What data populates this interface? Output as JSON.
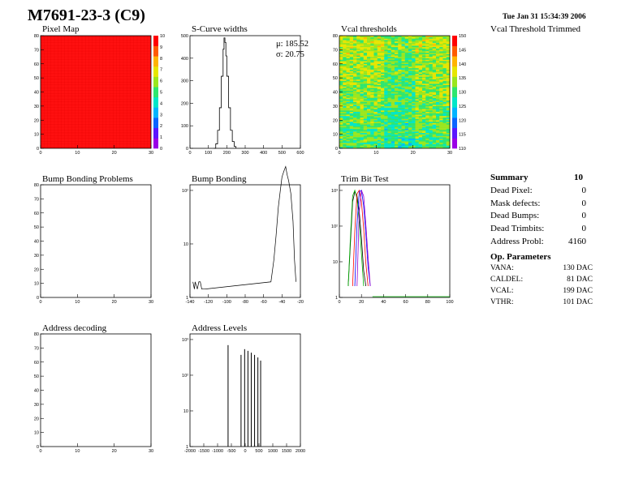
{
  "header": {
    "title": "M7691-23-3 (C9)",
    "date": "Tue Jan 31 15:34:39 2006"
  },
  "colors": {
    "pixel_map_fill": "#ff1010",
    "hist_line": "#000000",
    "palette": [
      "#9a00e6",
      "#5a16ff",
      "#0a64ff",
      "#00b4ff",
      "#00e6c8",
      "#2ee66e",
      "#9ae61e",
      "#e6e600",
      "#ffb400",
      "#ff5a00",
      "#ff0000"
    ]
  },
  "trimmed_label": "Vcal Threshold Trimmed",
  "summary": {
    "title": "Summary",
    "grade": "10",
    "rows": [
      {
        "label": "Dead Pixel:",
        "value": "0"
      },
      {
        "label": "Mask defects:",
        "value": "0"
      },
      {
        "label": "Dead Bumps:",
        "value": "0"
      },
      {
        "label": "Dead Trimbits:",
        "value": "0"
      },
      {
        "label": "Address Probl:",
        "value": "4160"
      }
    ]
  },
  "op_params": {
    "title": "Op. Parameters",
    "rows": [
      {
        "label": "VANA:",
        "value": "130 DAC"
      },
      {
        "label": "CALDEL:",
        "value": "81 DAC"
      },
      {
        "label": "VCAL:",
        "value": "199 DAC"
      },
      {
        "label": "VTHR:",
        "value": "101 DAC"
      }
    ]
  },
  "chart_data": [
    {
      "id": "pixel-map",
      "type": "heatmap",
      "title": "Pixel Map",
      "xlim": [
        0,
        32
      ],
      "ylim": [
        0,
        80
      ],
      "zlim": [
        0,
        10
      ],
      "xticks": [
        "0",
        "10",
        "20",
        "30"
      ],
      "yticks": [
        "0",
        "10",
        "20",
        "30",
        "40",
        "50",
        "60",
        "70",
        "80"
      ],
      "zticks": [
        "0",
        "1",
        "2",
        "3",
        "4",
        "5",
        "6",
        "7",
        "8",
        "9",
        "10"
      ],
      "uniform_value": 10
    },
    {
      "id": "s-curve-widths",
      "type": "line",
      "title": "S-Curve widths",
      "xlim": [
        0,
        600
      ],
      "ylim": [
        0,
        500
      ],
      "xticks": [
        "0",
        "100",
        "200",
        "300",
        "400",
        "500",
        "600"
      ],
      "yticks": [
        "0",
        "100",
        "200",
        "300",
        "400",
        "500"
      ],
      "stats": {
        "mean_label": "μ: 185.52",
        "sigma_label": "σ: 20.75"
      },
      "x": [
        130,
        140,
        150,
        160,
        170,
        180,
        185,
        190,
        195,
        200,
        210,
        220,
        230,
        240,
        250
      ],
      "y": [
        0,
        20,
        80,
        180,
        320,
        440,
        490,
        470,
        410,
        320,
        180,
        80,
        30,
        8,
        0
      ]
    },
    {
      "id": "vcal-thresholds",
      "type": "heatmap",
      "title": "Vcal thresholds",
      "xlim": [
        0,
        32
      ],
      "ylim": [
        0,
        80
      ],
      "zlim": [
        105,
        150
      ],
      "xticks": [
        "0",
        "10",
        "20",
        "30"
      ],
      "yticks": [
        "0",
        "10",
        "20",
        "30",
        "40",
        "50",
        "60",
        "70",
        "80"
      ],
      "zticks": [
        "110",
        "115",
        "120",
        "125",
        "130",
        "135",
        "140",
        "145",
        "150"
      ],
      "mean_value": 128
    },
    {
      "id": "bump-bonding-problems",
      "type": "heatmap",
      "title": "Bump Bonding Problems",
      "xlim": [
        0,
        32
      ],
      "ylim": [
        0,
        80
      ],
      "xticks": [
        "0",
        "10",
        "20",
        "30"
      ],
      "yticks": [
        "0",
        "10",
        "20",
        "30",
        "40",
        "50",
        "60",
        "70",
        "80"
      ]
    },
    {
      "id": "bump-bonding",
      "type": "line",
      "title": "Bump Bonding",
      "xlim": [
        -150,
        0
      ],
      "log_y": true,
      "xticks": [
        "-140",
        "-120",
        "-100",
        "-80",
        "-60",
        "-40",
        "-20"
      ],
      "yticks": [
        "1",
        "10",
        "10²"
      ],
      "x": [
        -146,
        -144,
        -143,
        -140,
        -138,
        -136,
        -134,
        -130,
        -40,
        -36,
        -33,
        -30,
        -27,
        -25,
        -22,
        -20,
        -18,
        -16,
        -13,
        -10,
        -8,
        -6
      ],
      "y": [
        1,
        0.7,
        1,
        0.7,
        1,
        1,
        0.7,
        0.7,
        1,
        3,
        10,
        40,
        100,
        180,
        250,
        300,
        200,
        150,
        80,
        20,
        3,
        1
      ]
    },
    {
      "id": "trim-bit-test",
      "type": "line",
      "title": "Trim Bit Test",
      "xlim": [
        0,
        100
      ],
      "log_y": true,
      "xticks": [
        "0",
        "20",
        "40",
        "60",
        "80",
        "100"
      ],
      "yticks": [
        "1",
        "10",
        "10²",
        "10³"
      ],
      "series": [
        {
          "color": "#000000",
          "x": [
            8,
            10,
            12,
            14,
            16,
            18,
            20,
            22,
            24
          ],
          "y": [
            1,
            20,
            400,
            800,
            600,
            200,
            30,
            3,
            1
          ]
        },
        {
          "color": "#00b000",
          "x": [
            8,
            10,
            12,
            14,
            16,
            18,
            20,
            22
          ],
          "y": [
            1,
            30,
            600,
            900,
            500,
            100,
            10,
            1
          ]
        },
        {
          "color": "#ff0000",
          "x": [
            12,
            14,
            16,
            18,
            20,
            22,
            24,
            26
          ],
          "y": [
            1,
            50,
            700,
            900,
            400,
            60,
            5,
            1
          ]
        },
        {
          "color": "#0000ff",
          "x": [
            14,
            16,
            18,
            20,
            22,
            24,
            26,
            28
          ],
          "y": [
            1,
            80,
            800,
            900,
            300,
            40,
            4,
            1
          ]
        },
        {
          "color": "#9900cc",
          "x": [
            16,
            18,
            20,
            22,
            24,
            26,
            28
          ],
          "y": [
            1,
            200,
            900,
            600,
            80,
            8,
            1
          ]
        }
      ]
    },
    {
      "id": "address-decoding",
      "type": "heatmap",
      "title": "Address decoding",
      "xlim": [
        0,
        32
      ],
      "ylim": [
        0,
        80
      ],
      "xticks": [
        "0",
        "10",
        "20",
        "30"
      ],
      "yticks": [
        "0",
        "10",
        "20",
        "30",
        "40",
        "50",
        "60",
        "70",
        "80"
      ]
    },
    {
      "id": "address-levels",
      "type": "bar",
      "title": "Address Levels",
      "xlim": [
        -2000,
        2000
      ],
      "log_y": true,
      "xticks": [
        "-2000",
        "-1500",
        "-1000",
        "-500",
        "0",
        "500",
        "1000",
        "1500",
        "2000"
      ],
      "yticks": [
        "1",
        "10",
        "10²",
        "10³"
      ],
      "x": [
        -620,
        -150,
        -20,
        100,
        220,
        340,
        460,
        560
      ],
      "y": [
        600,
        300,
        450,
        400,
        350,
        300,
        250,
        200
      ]
    }
  ]
}
